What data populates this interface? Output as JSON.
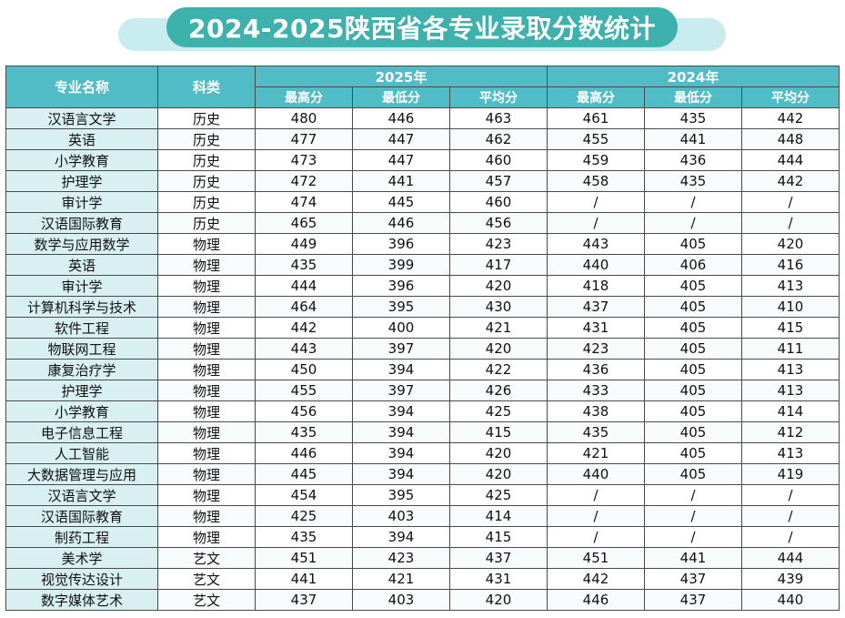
{
  "title": "2024-2025陕西省各专业录取分数统计",
  "colors": {
    "header": "#4fbcc6",
    "title_pill": "#3db2ad",
    "title_band": "#c9ecef",
    "name_cell": "#d8f0f2"
  },
  "headers": {
    "major": "专业名称",
    "type": "科类",
    "year_2025": "2025年",
    "year_2024": "2024年",
    "max": "最高分",
    "min": "最低分",
    "avg": "平均分"
  },
  "rows": [
    [
      "汉语言文学",
      "历史",
      "480",
      "446",
      "463",
      "461",
      "435",
      "442"
    ],
    [
      "英语",
      "历史",
      "477",
      "447",
      "462",
      "455",
      "441",
      "448"
    ],
    [
      "小学教育",
      "历史",
      "473",
      "447",
      "460",
      "459",
      "436",
      "444"
    ],
    [
      "护理学",
      "历史",
      "472",
      "441",
      "457",
      "458",
      "435",
      "442"
    ],
    [
      "审计学",
      "历史",
      "474",
      "445",
      "460",
      "/",
      "/",
      "/"
    ],
    [
      "汉语国际教育",
      "历史",
      "465",
      "446",
      "456",
      "/",
      "/",
      "/"
    ],
    [
      "数学与应用数学",
      "物理",
      "449",
      "396",
      "423",
      "443",
      "405",
      "420"
    ],
    [
      "英语",
      "物理",
      "435",
      "399",
      "417",
      "440",
      "406",
      "416"
    ],
    [
      "审计学",
      "物理",
      "444",
      "396",
      "420",
      "418",
      "405",
      "413"
    ],
    [
      "计算机科学与技术",
      "物理",
      "464",
      "395",
      "430",
      "437",
      "405",
      "410"
    ],
    [
      "软件工程",
      "物理",
      "442",
      "400",
      "421",
      "431",
      "405",
      "415"
    ],
    [
      "物联网工程",
      "物理",
      "443",
      "397",
      "420",
      "423",
      "405",
      "411"
    ],
    [
      "康复治疗学",
      "物理",
      "450",
      "394",
      "422",
      "436",
      "405",
      "413"
    ],
    [
      "护理学",
      "物理",
      "455",
      "397",
      "426",
      "433",
      "405",
      "413"
    ],
    [
      "小学教育",
      "物理",
      "456",
      "394",
      "425",
      "438",
      "405",
      "414"
    ],
    [
      "电子信息工程",
      "物理",
      "435",
      "394",
      "415",
      "435",
      "405",
      "412"
    ],
    [
      "人工智能",
      "物理",
      "446",
      "394",
      "420",
      "421",
      "405",
      "413"
    ],
    [
      "大数据管理与应用",
      "物理",
      "445",
      "394",
      "420",
      "440",
      "405",
      "419"
    ],
    [
      "汉语言文学",
      "物理",
      "454",
      "395",
      "425",
      "/",
      "/",
      "/"
    ],
    [
      "汉语国际教育",
      "物理",
      "425",
      "403",
      "414",
      "/",
      "/",
      "/"
    ],
    [
      "制药工程",
      "物理",
      "435",
      "394",
      "415",
      "/",
      "/",
      "/"
    ],
    [
      "美术学",
      "艺文",
      "451",
      "423",
      "437",
      "451",
      "441",
      "444"
    ],
    [
      "视觉传达设计",
      "艺文",
      "441",
      "421",
      "431",
      "442",
      "437",
      "439"
    ],
    [
      "数字媒体艺术",
      "艺文",
      "437",
      "403",
      "420",
      "446",
      "437",
      "440"
    ]
  ]
}
